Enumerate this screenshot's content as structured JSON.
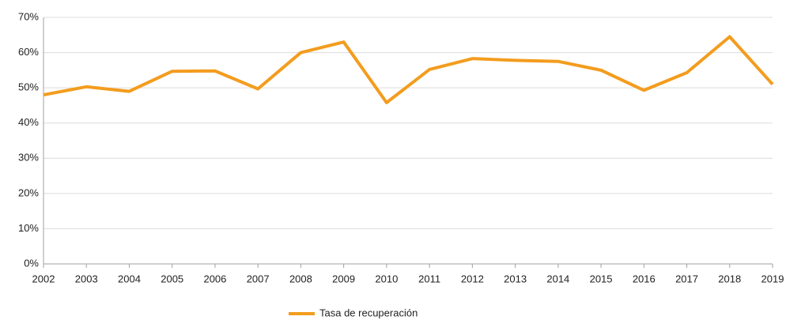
{
  "chart_data": {
    "type": "line",
    "categories": [
      "2002",
      "2003",
      "2004",
      "2005",
      "2006",
      "2007",
      "2008",
      "2009",
      "2010",
      "2011",
      "2012",
      "2013",
      "2014",
      "2015",
      "2016",
      "2017",
      "2018",
      "2019"
    ],
    "series": [
      {
        "name": "Tasa de recuperación",
        "color": "#f39c1e",
        "values": [
          48,
          50.3,
          49,
          54.7,
          54.8,
          49.7,
          60,
          63,
          45.8,
          55.2,
          58.3,
          57.8,
          57.5,
          55,
          49.3,
          54.3,
          64.5,
          51
        ]
      }
    ],
    "ylim": [
      0,
      70
    ],
    "yticks": [
      {
        "value": 0,
        "label": "0%"
      },
      {
        "value": 10,
        "label": "10%"
      },
      {
        "value": 20,
        "label": "20%"
      },
      {
        "value": 30,
        "label": "30%"
      },
      {
        "value": 40,
        "label": "40%"
      },
      {
        "value": 50,
        "label": "50%"
      },
      {
        "value": 60,
        "label": "60%"
      },
      {
        "value": 70,
        "label": "70%"
      }
    ],
    "grid": true,
    "legend": "bottom"
  }
}
